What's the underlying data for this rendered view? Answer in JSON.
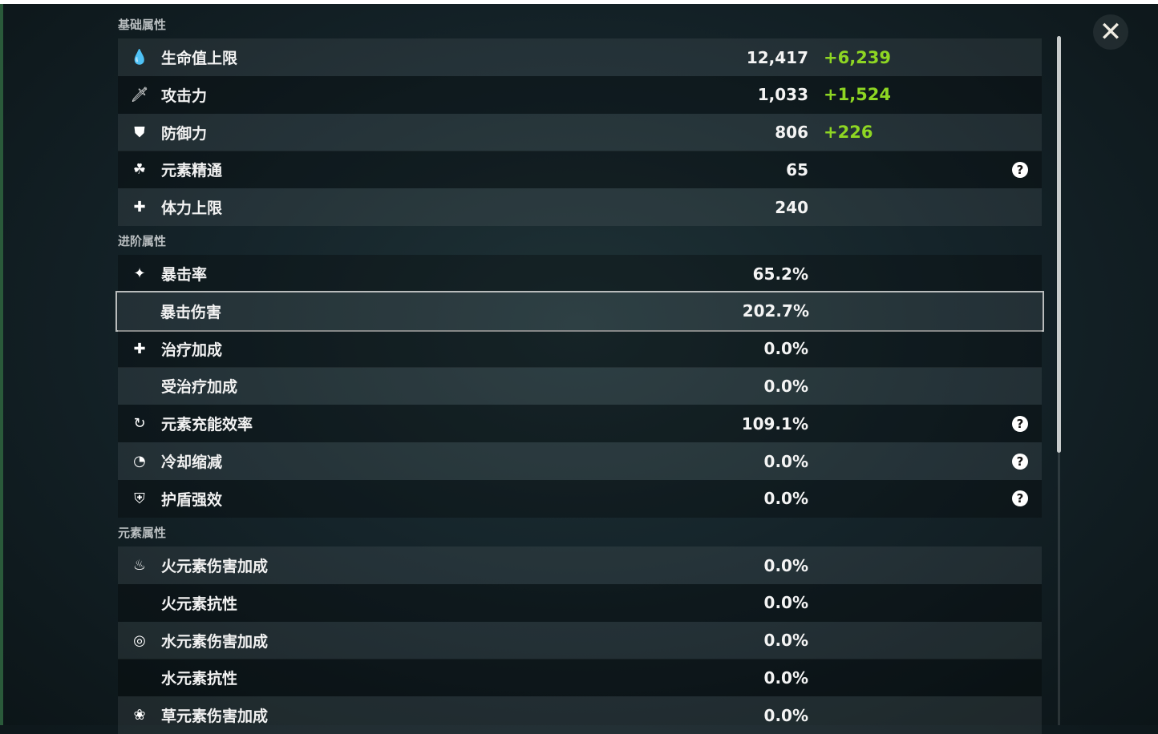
{
  "close_icon": "close-icon",
  "sections": [
    {
      "title": "基础属性",
      "rows": [
        {
          "icon": "droplet-icon",
          "glyph": "💧",
          "label": "生命值上限",
          "value": "12,417",
          "bonus": "+6,239"
        },
        {
          "icon": "sword-icon",
          "glyph": "🗡",
          "label": "攻击力",
          "value": "1,033",
          "bonus": "+1,524"
        },
        {
          "icon": "shield-icon",
          "glyph": "⛊",
          "label": "防御力",
          "value": "806",
          "bonus": "+226"
        },
        {
          "icon": "elemental-mastery-icon",
          "glyph": "☘",
          "label": "元素精通",
          "value": "65",
          "help": true
        },
        {
          "icon": "stamina-icon",
          "glyph": "✚",
          "label": "体力上限",
          "value": "240"
        }
      ]
    },
    {
      "title": "进阶属性",
      "rows": [
        {
          "icon": "crit-rate-icon",
          "glyph": "✦",
          "label": "暴击率",
          "value": "65.2%"
        },
        {
          "icon": "crit-damage-icon",
          "glyph": "",
          "label": "暴击伤害",
          "value": "202.7%",
          "selected": true
        },
        {
          "icon": "healing-icon",
          "glyph": "✚",
          "label": "治疗加成",
          "value": "0.0%"
        },
        {
          "label": "受治疗加成",
          "value": "0.0%"
        },
        {
          "icon": "energy-recharge-icon",
          "glyph": "↻",
          "label": "元素充能效率",
          "value": "109.1%",
          "help": true
        },
        {
          "icon": "cooldown-icon",
          "glyph": "◔",
          "label": "冷却缩减",
          "value": "0.0%",
          "help": true
        },
        {
          "icon": "shield-strength-icon",
          "glyph": "⛨",
          "label": "护盾强效",
          "value": "0.0%",
          "help": true
        }
      ]
    },
    {
      "title": "元素属性",
      "rows": [
        {
          "icon": "pyro-icon",
          "glyph": "♨",
          "label": "火元素伤害加成",
          "value": "0.0%"
        },
        {
          "label": "火元素抗性",
          "value": "0.0%"
        },
        {
          "icon": "hydro-icon",
          "glyph": "◎",
          "label": "水元素伤害加成",
          "value": "0.0%"
        },
        {
          "label": "水元素抗性",
          "value": "0.0%"
        },
        {
          "icon": "dendro-icon",
          "glyph": "❀",
          "label": "草元素伤害加成",
          "value": "0.0%"
        }
      ]
    }
  ],
  "colors": {
    "bonus": "#8ed623",
    "selected_border": "#b9bcbc"
  }
}
